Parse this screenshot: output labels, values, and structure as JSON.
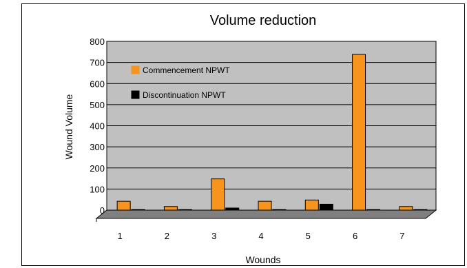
{
  "chart_data": {
    "type": "bar",
    "title": "Volume reduction",
    "xlabel": "Wounds",
    "ylabel": "Wound Volume",
    "categories": [
      "1",
      "2",
      "3",
      "4",
      "5",
      "6",
      "7"
    ],
    "ylim": [
      0,
      800
    ],
    "yticks": [
      0,
      100,
      200,
      300,
      400,
      500,
      600,
      700,
      800
    ],
    "grid": true,
    "legend_position": "top-left",
    "series": [
      {
        "name": "Commencement NPWT",
        "color": "#F7941D",
        "values": [
          42,
          17,
          148,
          42,
          48,
          738,
          17
        ]
      },
      {
        "name": "Discontinuation NPWT",
        "color": "#000000",
        "values": [
          3,
          3,
          10,
          3,
          28,
          3,
          3
        ]
      }
    ]
  },
  "colors": {
    "plot_background": "#C0C0C0",
    "floor": "#808080"
  }
}
